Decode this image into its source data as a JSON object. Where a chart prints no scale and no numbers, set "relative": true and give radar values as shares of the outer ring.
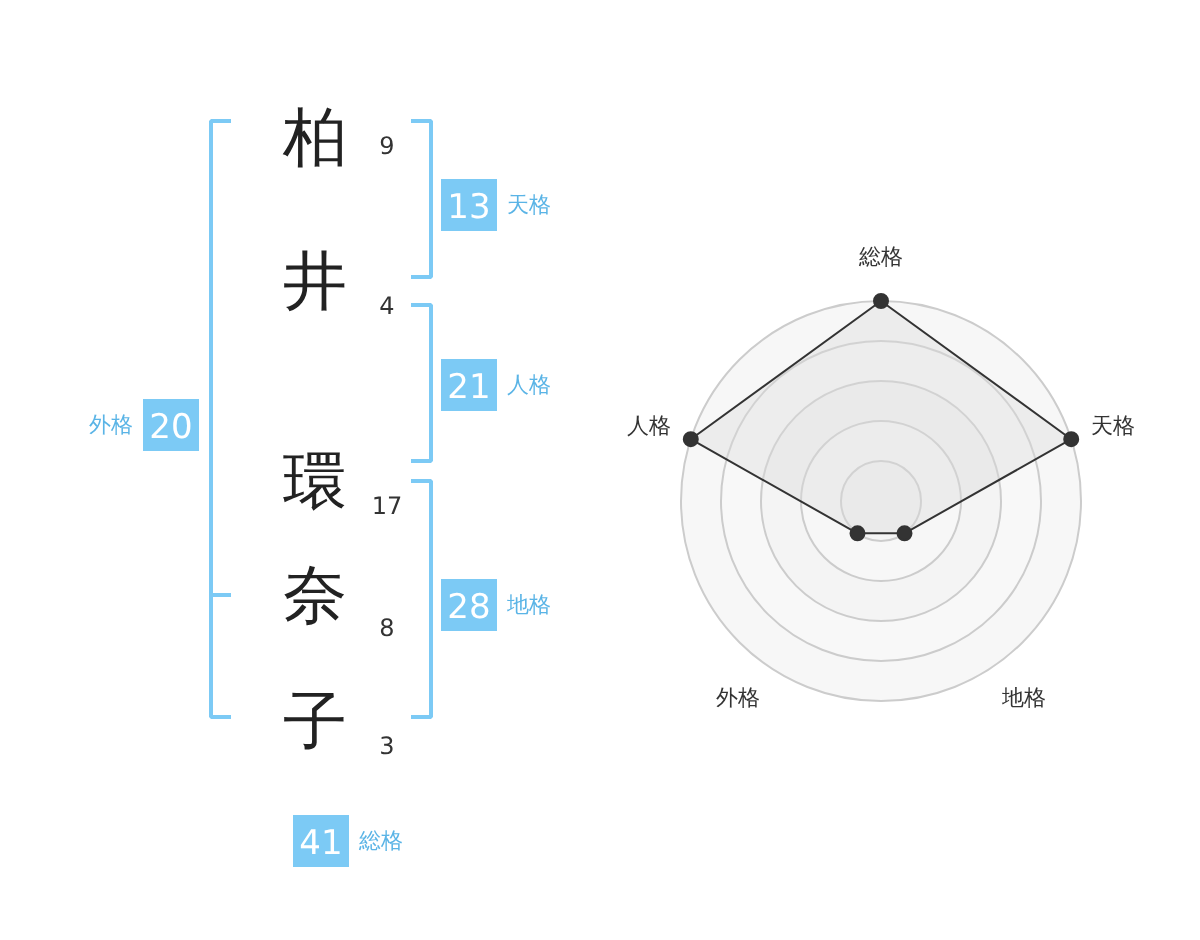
{
  "chart_data": [
    {
      "type": "other",
      "categories": [
        "柏",
        "井",
        "環",
        "奈",
        "子"
      ],
      "annotations": [
        "9",
        "4",
        "17",
        "8",
        "3",
        "13",
        "天格",
        "21",
        "人格",
        "28",
        "地格",
        "20",
        "外格",
        "41",
        "総格"
      ]
    },
    {
      "type": "radar",
      "categories": [
        "総格",
        "天格",
        "地格",
        "外格",
        "人格"
      ],
      "relative": true,
      "grid": true,
      "marker": "circle",
      "series": [
        {
          "color": "#333333",
          "values": [
            1,
            1,
            0.2,
            0.2,
            1
          ]
        }
      ]
    }
  ]
}
